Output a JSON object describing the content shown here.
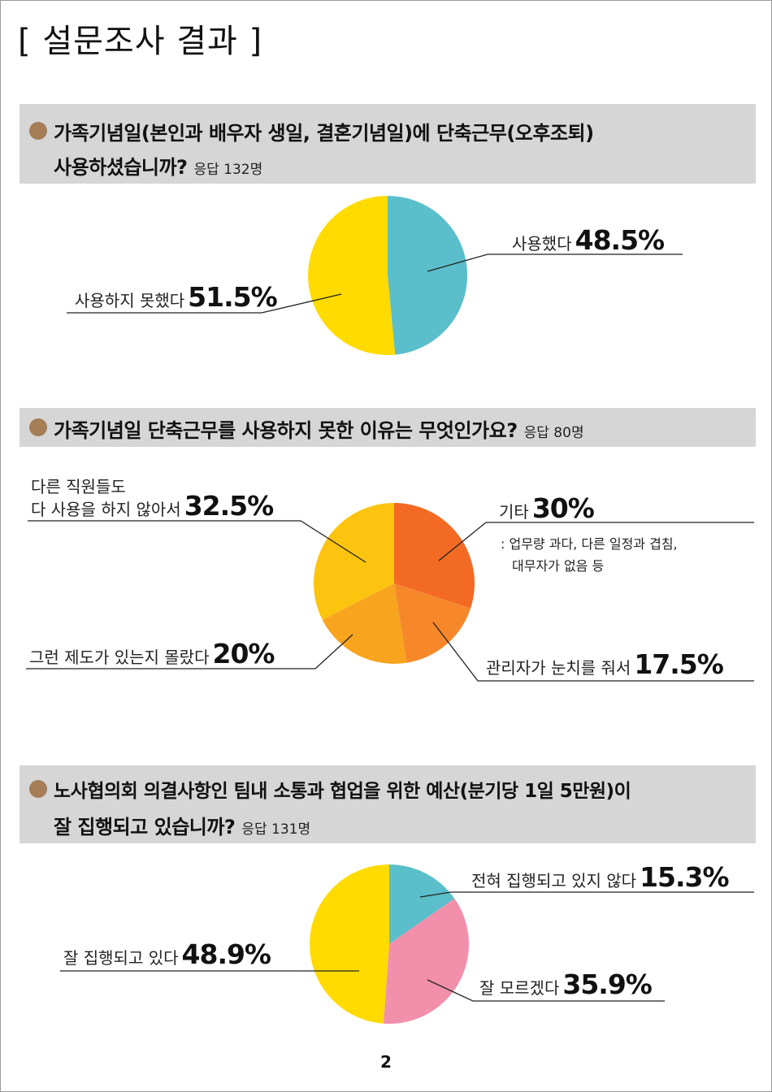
{
  "page_title": "[ 설문조사 결과 ]",
  "page_number": "2",
  "questions": [
    {
      "line1": "가족기념일(본인과 배우자 생일, 결혼기념일)에 단축근무(오후조퇴)",
      "line2": "사용하셨습니까?",
      "respondents": "응답 132명"
    },
    {
      "line1": "가족기념일 단축근무를 사용하지 못한 이유는 무엇인가요?",
      "respondents": "응답 80명"
    },
    {
      "line1": "노사협의회 의결사항인 팀내 소통과 협업을 위한 예산(분기당 1일 5만원)이",
      "line2": "잘 집행되고 있습니까?",
      "respondents": "응답 131명"
    }
  ],
  "labels": {
    "c1_used": "사용했다",
    "c1_used_pct": "48.5%",
    "c1_notused": "사용하지 못했다",
    "c1_notused_pct": "51.5%",
    "c2_etc": "기타",
    "c2_etc_pct": "30%",
    "c2_etc_note1": ": 업무량 과다, 다른 일정과 겹침,",
    "c2_etc_note2": "대무자가 없음 등",
    "c2_others1": "다른 직원들도",
    "c2_others2": "다 사용을 하지 않아서",
    "c2_others_pct": "32.5%",
    "c2_unaware": "그런 제도가 있는지 몰랐다",
    "c2_unaware_pct": "20%",
    "c2_manager": "관리자가 눈치를 줘서",
    "c2_manager_pct": "17.5%",
    "c3_not": "전혀 집행되고 있지 않다",
    "c3_not_pct": "15.3%",
    "c3_unknown": "잘 모르겠다",
    "c3_unknown_pct": "35.9%",
    "c3_well": "잘 집행되고 있다",
    "c3_well_pct": "48.9%"
  },
  "colors": {
    "bullet": "#a57d56",
    "question_bar": "#d6d6d6",
    "teal": "#5bbfcb",
    "yellow": "#ffdb00",
    "pink": "#f28fab",
    "orange_red": "#f26a24",
    "orange": "#f7882a",
    "light_orange": "#f8a41f",
    "golden": "#fcc30f"
  },
  "chart_data": [
    {
      "type": "pie",
      "categories": [
        "사용했다",
        "사용하지 못했다"
      ],
      "values": [
        48.5,
        51.5
      ],
      "colors": [
        "#5bbfcb",
        "#ffdb00"
      ],
      "start": "top",
      "direction": "clockwise"
    },
    {
      "type": "pie",
      "categories": [
        "기타",
        "관리자가 눈치를 줘서",
        "그런 제도가 있는지 몰랐다",
        "다른 직원들도 다 사용을 하지 않아서"
      ],
      "values": [
        30,
        17.5,
        20,
        32.5
      ],
      "colors": [
        "#f26a24",
        "#f7882a",
        "#f8a41f",
        "#fcc30f"
      ],
      "start": "top",
      "direction": "clockwise"
    },
    {
      "type": "pie",
      "categories": [
        "전혀 집행되고 있지 않다",
        "잘 모르겠다",
        "잘 집행되고 있다"
      ],
      "values": [
        15.3,
        35.9,
        48.9
      ],
      "colors": [
        "#5bbfcb",
        "#f28fab",
        "#ffdb00"
      ],
      "start": "top",
      "direction": "clockwise"
    }
  ]
}
